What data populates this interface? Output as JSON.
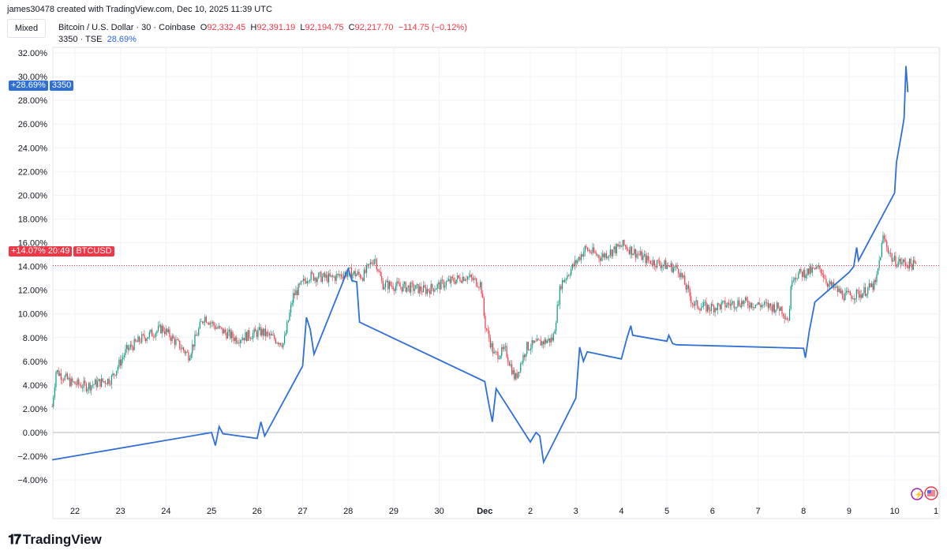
{
  "header": {
    "credit": "james30478 created with TradingView.com, Dec 10, 2025 11:39 UTC",
    "scale_mode": "Mixed",
    "symbol1": {
      "name": "Bitcoin / U.S. Dollar · 30 · Coinbase",
      "o_label": "O",
      "o": "92,332.45",
      "h_label": "H",
      "h": "92,391.19",
      "l_label": "L",
      "l": "92,194.75",
      "c_label": "C",
      "c": "92,217.70",
      "change": "−114.75 (−0.12%)"
    },
    "symbol2": {
      "name": "3350 · TSE",
      "value": "28.69%"
    }
  },
  "tags": {
    "tse_value": "+28.69%",
    "tse_name": "3350",
    "btc_value": "+14.07%",
    "btc_countdown": "20:49",
    "btc_name": "BTCUSD"
  },
  "footer": {
    "brand": "TradingView",
    "logo_mark": "17"
  },
  "colors": {
    "tse_line": "#2f6fd6",
    "up": "#089981",
    "down": "#f23645",
    "grid": "#f0f3fa",
    "zero_line": "#b2b5be"
  },
  "chart_data": {
    "type": "line",
    "ylabel_unit": "%",
    "ylim": [
      -5.5,
      33
    ],
    "y_ticks": [
      "32.00%",
      "30.00%",
      "28.00%",
      "26.00%",
      "24.00%",
      "22.00%",
      "20.00%",
      "18.00%",
      "16.00%",
      "14.00%",
      "12.00%",
      "10.00%",
      "8.00%",
      "6.00%",
      "4.00%",
      "2.00%",
      "0.00%",
      "−2.00%",
      "−4.00%"
    ],
    "x_ticks": [
      "22",
      "23",
      "24",
      "25",
      "26",
      "27",
      "28",
      "29",
      "30",
      "Dec",
      "2",
      "3",
      "4",
      "5",
      "6",
      "7",
      "8",
      "9",
      "10",
      "1"
    ],
    "grid": true,
    "series": [
      {
        "name": "3350",
        "style": "line",
        "points": [
          [
            "2025-11-21T12:00",
            -2.3
          ],
          [
            "2025-11-25T00:00",
            0.0
          ],
          [
            "2025-11-25T02:00",
            -1.1
          ],
          [
            "2025-11-25T04:00",
            0.5
          ],
          [
            "2025-11-25T06:00",
            -0.1
          ],
          [
            "2025-11-26T00:00",
            -0.5
          ],
          [
            "2025-11-26T02:00",
            0.9
          ],
          [
            "2025-11-26T04:00",
            -0.3
          ],
          [
            "2025-11-27T00:00",
            5.6
          ],
          [
            "2025-11-27T02:00",
            9.7
          ],
          [
            "2025-11-27T04:00",
            8.7
          ],
          [
            "2025-11-27T06:00",
            6.6
          ],
          [
            "2025-11-28T00:00",
            13.8
          ],
          [
            "2025-11-28T02:00",
            12.8
          ],
          [
            "2025-11-28T04:30",
            12.7
          ],
          [
            "2025-11-28T06:00",
            9.3
          ],
          [
            "2025-12-01T00:00",
            4.3
          ],
          [
            "2025-12-01T02:00",
            2.5
          ],
          [
            "2025-12-01T04:00",
            0.9
          ],
          [
            "2025-12-01T06:00",
            3.7
          ],
          [
            "2025-12-02T00:00",
            -0.8
          ],
          [
            "2025-12-02T03:00",
            0.0
          ],
          [
            "2025-12-02T05:00",
            -0.3
          ],
          [
            "2025-12-02T07:00",
            -2.5
          ],
          [
            "2025-12-03T00:00",
            2.9
          ],
          [
            "2025-12-03T02:00",
            7.2
          ],
          [
            "2025-12-03T04:00",
            6.0
          ],
          [
            "2025-12-03T06:00",
            6.8
          ],
          [
            "2025-12-04T00:00",
            6.2
          ],
          [
            "2025-12-04T03:00",
            8.0
          ],
          [
            "2025-12-04T05:00",
            9.0
          ],
          [
            "2025-12-04T06:00",
            8.2
          ],
          [
            "2025-12-05T00:00",
            7.7
          ],
          [
            "2025-12-05T01:00",
            8.2
          ],
          [
            "2025-12-05T03:00",
            7.5
          ],
          [
            "2025-12-05T05:00",
            7.4
          ],
          [
            "2025-12-08T00:00",
            7.1
          ],
          [
            "2025-12-08T01:00",
            6.3
          ],
          [
            "2025-12-08T03:00",
            8.5
          ],
          [
            "2025-12-08T06:00",
            11.0
          ],
          [
            "2025-12-09T00:00",
            13.5
          ],
          [
            "2025-12-09T02:30",
            14.0
          ],
          [
            "2025-12-09T04:00",
            15.6
          ],
          [
            "2025-12-09T05:00",
            14.5
          ],
          [
            "2025-12-10T00:00",
            20.2
          ],
          [
            "2025-12-10T01:00",
            22.8
          ],
          [
            "2025-12-10T04:00",
            25.5
          ],
          [
            "2025-12-10T05:00",
            26.5
          ],
          [
            "2025-12-10T06:00",
            30.9
          ],
          [
            "2025-12-10T07:00",
            28.69
          ]
        ]
      },
      {
        "name": "BTCUSD",
        "style": "candles",
        "points": [
          [
            "2025-11-21T12:00",
            2.2
          ],
          [
            "2025-11-21T14:00",
            5.2
          ],
          [
            "2025-11-21T22:00",
            4.2
          ],
          [
            "2025-11-22T06:00",
            3.9
          ],
          [
            "2025-11-22T19:00",
            4.5
          ],
          [
            "2025-11-23T03:00",
            6.9
          ],
          [
            "2025-11-23T11:00",
            7.9
          ],
          [
            "2025-11-23T22:00",
            8.8
          ],
          [
            "2025-11-24T12:00",
            6.5
          ],
          [
            "2025-11-24T20:00",
            9.8
          ],
          [
            "2025-11-25T03:00",
            8.8
          ],
          [
            "2025-11-25T13:00",
            7.9
          ],
          [
            "2025-11-26T02:00",
            8.5
          ],
          [
            "2025-11-26T14:00",
            7.5
          ],
          [
            "2025-11-26T19:00",
            11.5
          ],
          [
            "2025-11-27T03:00",
            13.2
          ],
          [
            "2025-11-27T15:00",
            13.0
          ],
          [
            "2025-11-28T00:00",
            13.5
          ],
          [
            "2025-11-28T08:00",
            13.2
          ],
          [
            "2025-11-28T14:00",
            14.8
          ],
          [
            "2025-11-28T18:00",
            12.5
          ],
          [
            "2025-11-29T09:00",
            12.2
          ],
          [
            "2025-11-29T17:00",
            12.0
          ],
          [
            "2025-11-30T14:00",
            13.2
          ],
          [
            "2025-11-30T22:00",
            12.5
          ],
          [
            "2025-12-01T00:00",
            9.2
          ],
          [
            "2025-12-01T05:00",
            6.5
          ],
          [
            "2025-12-01T11:00",
            6.9
          ],
          [
            "2025-12-01T16:00",
            4.5
          ],
          [
            "2025-12-01T22:00",
            7.2
          ],
          [
            "2025-12-02T12:00",
            7.9
          ],
          [
            "2025-12-02T16:00",
            12.5
          ],
          [
            "2025-12-03T05:00",
            15.5
          ],
          [
            "2025-12-03T13:00",
            14.8
          ],
          [
            "2025-12-04T01:00",
            15.8
          ],
          [
            "2025-12-04T14:00",
            14.5
          ],
          [
            "2025-12-05T06:00",
            13.8
          ],
          [
            "2025-12-05T14:00",
            10.8
          ],
          [
            "2025-12-05T22:00",
            10.5
          ],
          [
            "2025-12-06T15:00",
            11.0
          ],
          [
            "2025-12-07T12:00",
            10.5
          ],
          [
            "2025-12-07T16:00",
            9.5
          ],
          [
            "2025-12-07T18:00",
            13.2
          ],
          [
            "2025-12-08T09:00",
            13.8
          ],
          [
            "2025-12-08T13:00",
            12.5
          ],
          [
            "2025-12-08T22:00",
            11.5
          ],
          [
            "2025-12-09T06:00",
            11.7
          ],
          [
            "2025-12-09T14:00",
            12.5
          ],
          [
            "2025-12-09T18:00",
            16.5
          ],
          [
            "2025-12-09T23:00",
            14.5
          ],
          [
            "2025-12-10T11:30",
            14.07
          ]
        ]
      }
    ]
  }
}
